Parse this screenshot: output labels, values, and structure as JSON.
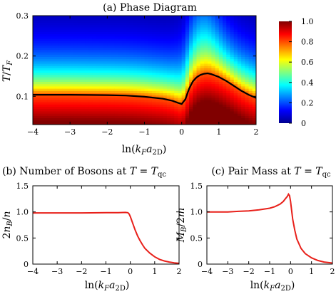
{
  "figure_colors": {
    "curve_red": "#e8201a",
    "boundary": "#000000"
  },
  "chart_data": [
    {
      "id": "phase",
      "type": "heatmap",
      "title": "(a) Phase Diagram",
      "xlabel": "ln(k_F a_2D)",
      "xlabel_parts": [
        "ln(",
        "k",
        "F",
        "a",
        "2D",
        ")"
      ],
      "ylabel": "T/T_F",
      "ylabel_parts": [
        "T",
        "/",
        "T",
        "F"
      ],
      "xlim": [
        -4,
        2
      ],
      "ylim": [
        0.03,
        0.3
      ],
      "xticks": [
        -4,
        -3,
        -2,
        -1,
        0,
        1,
        2
      ],
      "xtick_labels": [
        "−4",
        "−3",
        "−2",
        "−1",
        "0",
        "1",
        "2"
      ],
      "yticks": [
        0.1,
        0.2,
        0.3
      ],
      "ytick_labels": [
        "0.1",
        "0.2",
        "0.3"
      ],
      "colorbar": {
        "range": [
          0,
          1.0
        ],
        "ticks": [
          0,
          0.2,
          0.4,
          0.6,
          0.8,
          1.0
        ],
        "tick_labels": [
          "0",
          "0.2",
          "0.4",
          "0.6",
          "0.8",
          "1.0"
        ],
        "colormap": "jet"
      },
      "boundary": {
        "x": [
          -4,
          -3,
          -2,
          -1.5,
          -1.0,
          -0.5,
          -0.25,
          -0.1,
          0.0,
          0.1,
          0.2,
          0.3,
          0.4,
          0.5,
          0.6,
          0.7,
          0.8,
          1.0,
          1.2,
          1.4,
          1.6,
          1.8,
          2.0
        ],
        "y": [
          0.104,
          0.104,
          0.103,
          0.102,
          0.099,
          0.094,
          0.089,
          0.084,
          0.081,
          0.093,
          0.119,
          0.137,
          0.147,
          0.153,
          0.156,
          0.157,
          0.155,
          0.148,
          0.138,
          0.126,
          0.114,
          0.104,
          0.096
        ]
      }
    },
    {
      "id": "bosons",
      "type": "line",
      "title": "(b) Number of Bosons at T = T_qc",
      "title_parts": [
        "(b) Number of Bosons at ",
        "T",
        " = ",
        "T",
        "qc"
      ],
      "xlabel": "ln(k_F a_2D)",
      "xlabel_parts": [
        "ln(",
        "k",
        "F",
        "a",
        "2D",
        ")"
      ],
      "ylabel": "2n_B/n",
      "ylabel_parts": [
        "2",
        "n",
        "B",
        "/",
        "n"
      ],
      "xlim": [
        -4,
        2
      ],
      "ylim": [
        0,
        1.5
      ],
      "xticks": [
        -4,
        -3,
        -2,
        -1,
        0,
        1,
        2
      ],
      "xtick_labels": [
        "−4",
        "−3",
        "−2",
        "−1",
        "0",
        "1",
        "2"
      ],
      "yticks": [
        0,
        0.5,
        1.0,
        1.5
      ],
      "ytick_labels": [
        "0",
        "0.5",
        "1.0",
        "1.5"
      ],
      "series": [
        {
          "x": [
            -4,
            -3,
            -2,
            -1,
            -0.5,
            -0.2,
            -0.1,
            -0.05,
            0.0,
            0.1,
            0.2,
            0.3,
            0.4,
            0.5,
            0.6,
            0.8,
            1.0,
            1.2,
            1.4,
            1.6,
            1.8,
            2.0
          ],
          "y": [
            0.98,
            0.98,
            0.98,
            0.985,
            0.985,
            0.99,
            0.985,
            0.96,
            0.91,
            0.78,
            0.65,
            0.54,
            0.45,
            0.37,
            0.3,
            0.21,
            0.14,
            0.09,
            0.06,
            0.04,
            0.025,
            0.015
          ]
        }
      ]
    },
    {
      "id": "mass",
      "type": "line",
      "title": "(c) Pair Mass at T = T_qc",
      "title_parts": [
        "(c) Pair Mass at ",
        "T",
        " = ",
        "T",
        "qc"
      ],
      "xlabel": "ln(k_F a_2D)",
      "xlabel_parts": [
        "ln(",
        "k",
        "F",
        "a",
        "2D",
        ")"
      ],
      "ylabel": "M_B/2m",
      "ylabel_parts": [
        "M",
        "B",
        "/2",
        "m"
      ],
      "xlim": [
        -4,
        2
      ],
      "ylim": [
        0,
        1.5
      ],
      "xticks": [
        -4,
        -3,
        -2,
        -1,
        0,
        1,
        2
      ],
      "xtick_labels": [
        "−4",
        "−3",
        "−2",
        "−1",
        "0",
        "1",
        "2"
      ],
      "yticks": [
        0,
        0.5,
        1.0,
        1.5
      ],
      "ytick_labels": [
        "0",
        "0.5",
        "1.0",
        "1.5"
      ],
      "series": [
        {
          "x": [
            -4,
            -3,
            -2.5,
            -2,
            -1.5,
            -1.0,
            -0.75,
            -0.5,
            -0.35,
            -0.25,
            -0.15,
            -0.1,
            -0.05,
            0.0,
            0.05,
            0.1,
            0.2,
            0.3,
            0.5,
            0.7,
            1.0,
            1.3,
            1.6,
            2.0
          ],
          "y": [
            1.0,
            1.0,
            1.01,
            1.02,
            1.04,
            1.07,
            1.1,
            1.15,
            1.2,
            1.25,
            1.3,
            1.34,
            1.31,
            1.2,
            1.03,
            0.86,
            0.65,
            0.48,
            0.3,
            0.2,
            0.12,
            0.07,
            0.04,
            0.02
          ]
        }
      ]
    }
  ]
}
